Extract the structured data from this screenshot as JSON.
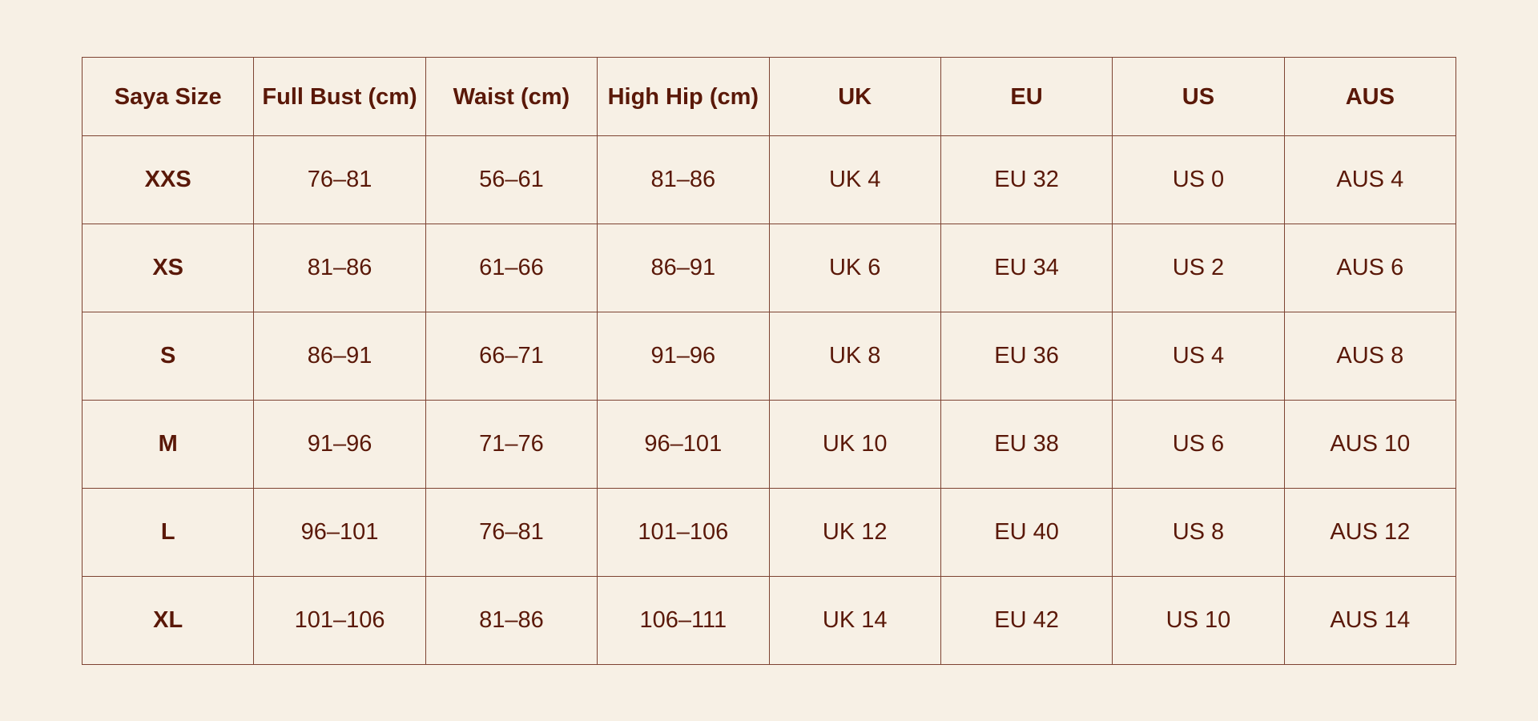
{
  "table": {
    "headers": [
      "Saya Size",
      "Full Bust (cm)",
      "Waist (cm)",
      "High Hip (cm)",
      "UK",
      "EU",
      "US",
      "AUS"
    ],
    "rows": [
      [
        "XXS",
        "76–81",
        "56–61",
        "81–86",
        "UK 4",
        "EU 32",
        "US 0",
        "AUS 4"
      ],
      [
        "XS",
        "81–86",
        "61–66",
        "86–91",
        "UK 6",
        "EU 34",
        "US 2",
        "AUS 6"
      ],
      [
        "S",
        "86–91",
        "66–71",
        "91–96",
        "UK 8",
        "EU 36",
        "US 4",
        "AUS 8"
      ],
      [
        "M",
        "91–96",
        "71–76",
        "96–101",
        "UK 10",
        "EU 38",
        "US 6",
        "AUS 10"
      ],
      [
        "L",
        "96–101",
        "76–81",
        "101–106",
        "UK 12",
        "EU 40",
        "US 8",
        "AUS 12"
      ],
      [
        "XL",
        "101–106",
        "81–86",
        "106–111",
        "UK 14",
        "EU 42",
        "US 10",
        "AUS 14"
      ]
    ]
  },
  "colors": {
    "background": "#f7f0e5",
    "text": "#5a1808",
    "border": "#7d4332"
  }
}
